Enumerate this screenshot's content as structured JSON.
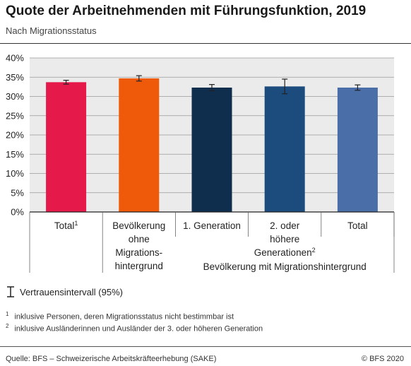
{
  "title": "Quote der Arbeitnehmenden mit Führungsfunktion, 2019",
  "subtitle": "Nach Migrationsstatus",
  "chart_data": {
    "type": "bar",
    "ylim": [
      0,
      40
    ],
    "yticks": [
      "0%",
      "5%",
      "10%",
      "15%",
      "20%",
      "25%",
      "30%",
      "35%",
      "40%"
    ],
    "grid": true,
    "categories": [
      {
        "lines": [
          "Total"
        ],
        "sup": "1"
      },
      {
        "lines": [
          "Bevölkerung",
          "ohne",
          "Migrations-",
          "hintergrund"
        ],
        "sup": ""
      },
      {
        "lines": [
          "1. Generation"
        ],
        "sup": ""
      },
      {
        "lines": [
          "2. oder",
          "höhere",
          "Generationen"
        ],
        "sup": "2"
      },
      {
        "lines": [
          "Total"
        ],
        "sup": ""
      }
    ],
    "values": [
      33.7,
      34.7,
      32.3,
      32.6,
      32.3
    ],
    "ci_low": [
      33.2,
      34.0,
      31.5,
      30.7,
      31.6
    ],
    "ci_high": [
      34.2,
      35.4,
      33.1,
      34.5,
      33.0
    ],
    "colors": [
      "#e5194a",
      "#ef5a0a",
      "#0f2d4d",
      "#1b4c7d",
      "#4a6ea8"
    ],
    "group_label": "Bevölkerung mit Migrationshintergrund"
  },
  "legend": {
    "ci_label": "Vertrauensintervall (95%)"
  },
  "footnotes": [
    {
      "mark": "1",
      "text": "inklusive Personen, deren Migrationsstatus nicht bestimmbar ist"
    },
    {
      "mark": "2",
      "text": "inklusive Ausländerinnen und Ausländer der 3. oder höheren Generation"
    }
  ],
  "source": "Quelle: BFS – Schweizerische Arbeitskräfteerhebung (SAKE)",
  "copyright": "© BFS 2020"
}
